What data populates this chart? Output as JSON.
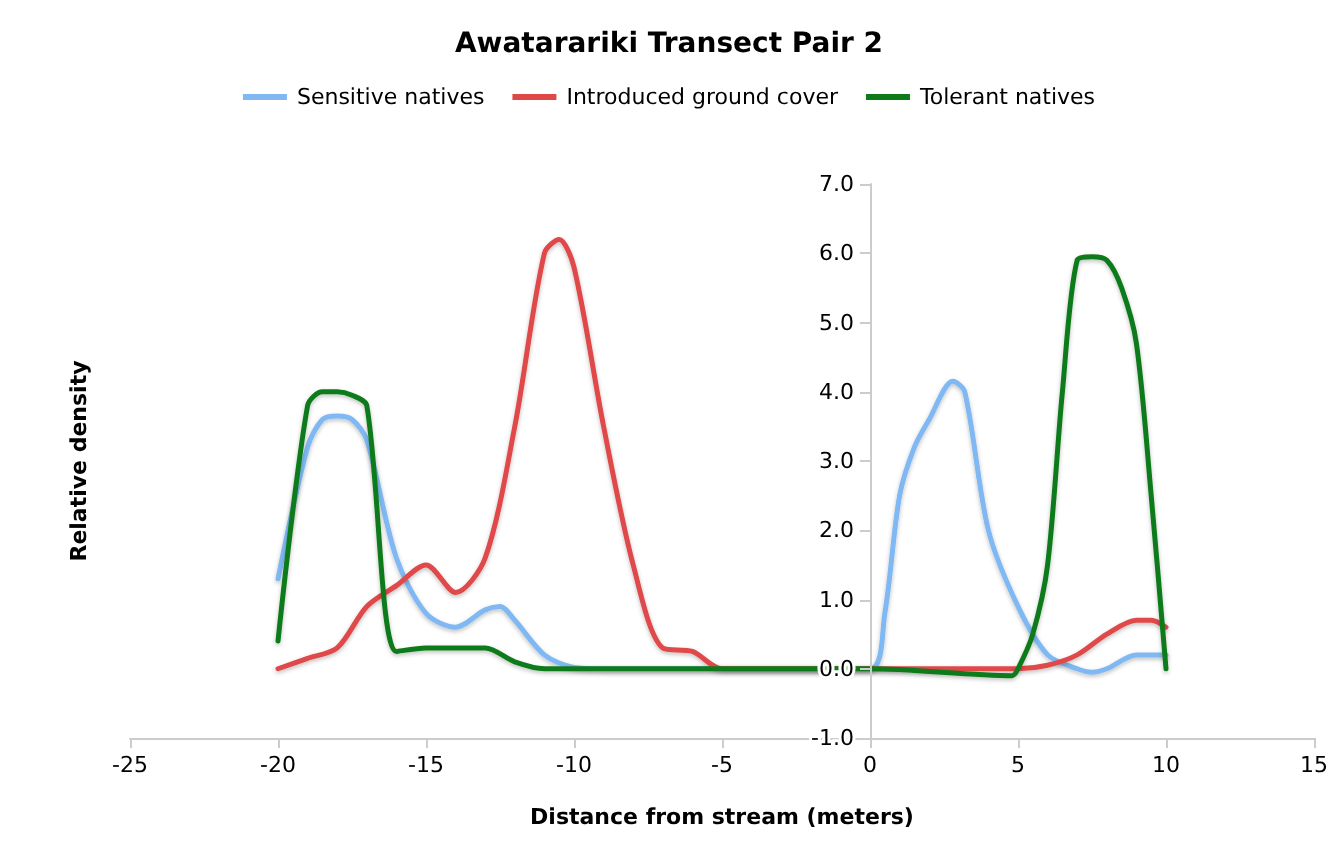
{
  "chart_data": {
    "type": "line",
    "title": "Awatarariki Transect Pair 2",
    "xlabel": "Distance from stream (meters)",
    "ylabel": "Relative density",
    "series": [
      {
        "name": "Sensitive natives",
        "color": "#7fb8f2",
        "x": [
          -20,
          -19,
          -18.5,
          -18,
          -17.5,
          -17,
          -16,
          -15,
          -14,
          -13,
          -12.5,
          -12,
          -11,
          -10,
          -9,
          -5,
          0,
          0.5,
          1,
          1.5,
          2,
          2.8,
          3.2,
          4,
          5,
          6,
          7,
          7.5,
          8,
          9,
          10
        ],
        "values": [
          1.3,
          3.2,
          3.6,
          3.65,
          3.6,
          3.3,
          1.6,
          0.8,
          0.6,
          0.85,
          0.9,
          0.7,
          0.2,
          0.02,
          0,
          0,
          0,
          0.8,
          2.5,
          3.2,
          3.6,
          4.15,
          4.0,
          2.0,
          0.9,
          0.2,
          0,
          -0.05,
          0,
          0.2,
          0.2
        ]
      },
      {
        "name": "Introduced ground cover",
        "color": "#e04848",
        "x": [
          -20,
          -19,
          -18,
          -17,
          -16,
          -15,
          -14,
          -13,
          -12,
          -11,
          -10.5,
          -10,
          -9,
          -8,
          -7,
          -6,
          -5,
          0,
          5,
          6,
          7,
          8,
          9,
          9.5,
          10
        ],
        "values": [
          0,
          0.15,
          0.3,
          0.9,
          1.2,
          1.5,
          1.1,
          1.6,
          3.5,
          6.0,
          6.2,
          5.8,
          3.5,
          1.5,
          0.3,
          0.25,
          0,
          0,
          0,
          0.05,
          0.2,
          0.5,
          0.7,
          0.7,
          0.6
        ]
      },
      {
        "name": "Tolerant natives",
        "color": "#0f7a1a",
        "x": [
          -20,
          -19,
          -18.5,
          -18,
          -17.5,
          -17,
          -16,
          -15,
          -13,
          -12,
          -11,
          0,
          4.8,
          5,
          5.5,
          6,
          6.5,
          7,
          7.5,
          8,
          8.5,
          9,
          9.5,
          10
        ],
        "values": [
          0.4,
          3.8,
          4.0,
          4.0,
          3.95,
          3.8,
          0.25,
          0.3,
          0.3,
          0.1,
          0,
          0,
          -0.1,
          0,
          0.5,
          1.5,
          4.0,
          5.9,
          5.95,
          5.9,
          5.5,
          4.7,
          2.5,
          0
        ]
      }
    ],
    "xlim": [
      -25,
      15
    ],
    "xticks": [
      -25,
      -20,
      -15,
      -10,
      -5,
      0,
      5,
      10,
      15
    ],
    "ylim": [
      -1,
      7
    ],
    "yticks": [
      {
        "value": -1,
        "label": "-1.0"
      },
      {
        "value": 0,
        "label": "0.0"
      },
      {
        "value": 1,
        "label": "1.0"
      },
      {
        "value": 2,
        "label": "2.0"
      },
      {
        "value": 3,
        "label": "3.0"
      },
      {
        "value": 4,
        "label": "4.0"
      },
      {
        "value": 5,
        "label": "5.0"
      },
      {
        "value": 6,
        "label": "6.0"
      },
      {
        "value": 7,
        "label": "7.0"
      }
    ],
    "grid": false,
    "legend": "top",
    "marker": "none",
    "line_style": "solid"
  }
}
